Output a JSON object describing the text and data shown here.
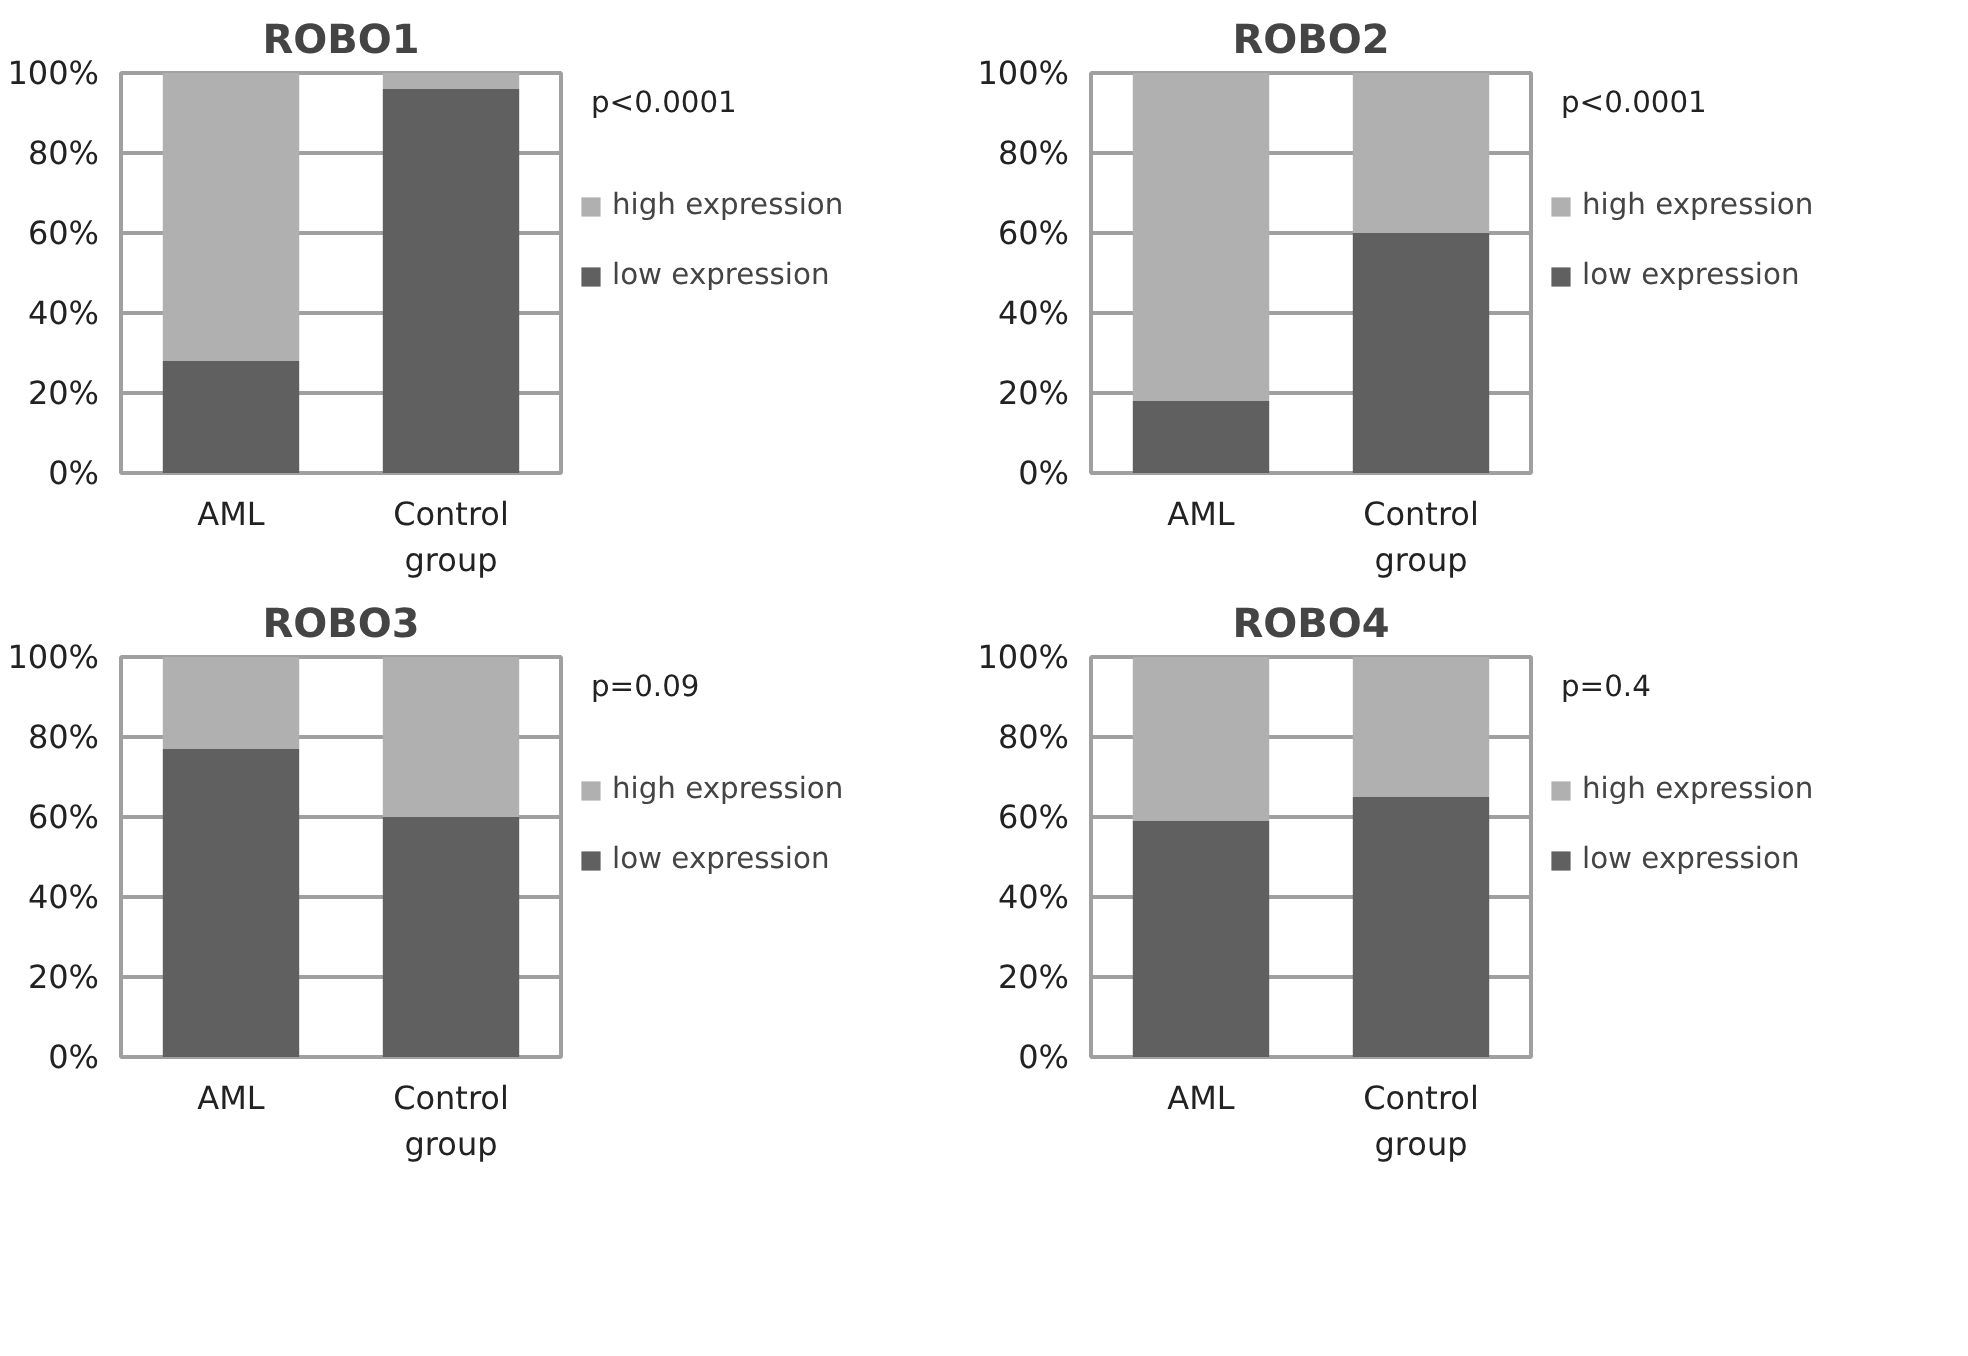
{
  "chart_data": [
    {
      "type": "bar",
      "title": "ROBO1",
      "categories": [
        "AML",
        "Control group"
      ],
      "stacked": true,
      "ylim": [
        0,
        100
      ],
      "yticks": [
        {
          "value": 0,
          "label": "0%"
        },
        {
          "value": 20,
          "label": "20%"
        },
        {
          "value": 40,
          "label": "40%"
        },
        {
          "value": 60,
          "label": "60%"
        },
        {
          "value": 80,
          "label": "80%"
        },
        {
          "value": 100,
          "label": "100%"
        }
      ],
      "grid": "y",
      "legend": "right",
      "annotations": [
        "p<0.0001"
      ],
      "series": [
        {
          "name": "low expression",
          "color": "#606060",
          "values": [
            28,
            96
          ]
        },
        {
          "name": "high expression",
          "color": "#b0b0b0",
          "values": [
            72,
            4
          ]
        }
      ]
    },
    {
      "type": "bar",
      "title": "ROBO2",
      "categories": [
        "AML",
        "Control group"
      ],
      "stacked": true,
      "ylim": [
        0,
        100
      ],
      "yticks": [
        {
          "value": 0,
          "label": "0%"
        },
        {
          "value": 20,
          "label": "20%"
        },
        {
          "value": 40,
          "label": "40%"
        },
        {
          "value": 60,
          "label": "60%"
        },
        {
          "value": 80,
          "label": "80%"
        },
        {
          "value": 100,
          "label": "100%"
        }
      ],
      "grid": "y",
      "legend": "right",
      "annotations": [
        "p<0.0001"
      ],
      "series": [
        {
          "name": "low expression",
          "color": "#606060",
          "values": [
            18,
            60
          ]
        },
        {
          "name": "high expression",
          "color": "#b0b0b0",
          "values": [
            82,
            40
          ]
        }
      ]
    },
    {
      "type": "bar",
      "title": "ROBO3",
      "categories": [
        "AML",
        "Control group"
      ],
      "stacked": true,
      "ylim": [
        0,
        100
      ],
      "yticks": [
        {
          "value": 0,
          "label": "0%"
        },
        {
          "value": 20,
          "label": "20%"
        },
        {
          "value": 40,
          "label": "40%"
        },
        {
          "value": 60,
          "label": "60%"
        },
        {
          "value": 80,
          "label": "80%"
        },
        {
          "value": 100,
          "label": "100%"
        }
      ],
      "grid": "y",
      "legend": "right",
      "annotations": [
        "p=0.09"
      ],
      "series": [
        {
          "name": "low expression",
          "color": "#606060",
          "values": [
            77,
            60
          ]
        },
        {
          "name": "high expression",
          "color": "#b0b0b0",
          "values": [
            23,
            40
          ]
        }
      ]
    },
    {
      "type": "bar",
      "title": "ROBO4",
      "categories": [
        "AML",
        "Control group"
      ],
      "stacked": true,
      "ylim": [
        0,
        100
      ],
      "yticks": [
        {
          "value": 0,
          "label": "0%"
        },
        {
          "value": 20,
          "label": "20%"
        },
        {
          "value": 40,
          "label": "40%"
        },
        {
          "value": 60,
          "label": "60%"
        },
        {
          "value": 80,
          "label": "80%"
        },
        {
          "value": 100,
          "label": "100%"
        }
      ],
      "grid": "y",
      "legend": "right",
      "annotations": [
        "p=0.4"
      ],
      "series": [
        {
          "name": "low expression",
          "color": "#606060",
          "values": [
            59,
            65
          ]
        },
        {
          "name": "high expression",
          "color": "#b0b0b0",
          "values": [
            41,
            35
          ]
        }
      ]
    }
  ]
}
